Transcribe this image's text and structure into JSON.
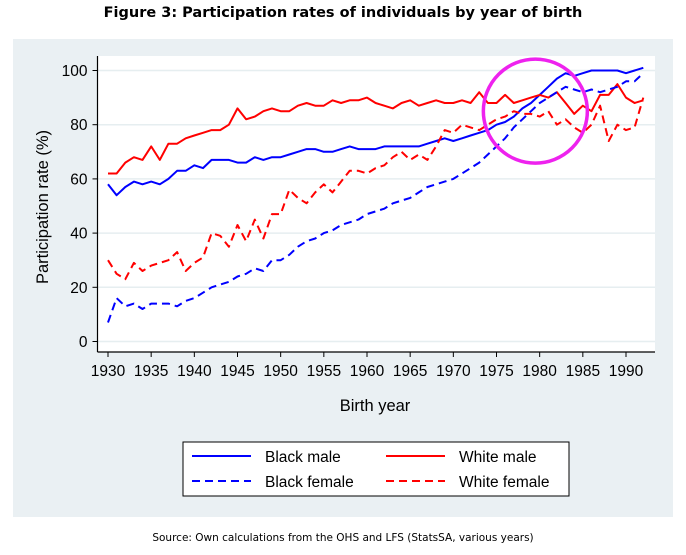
{
  "figure_title": "Figure 3: Participation rates of individuals by year of birth",
  "source_note": "Source: Own calculations from the OHS and LFS (StatsSA,  various years)",
  "colors": {
    "black_series": "#0000ff",
    "white_series": "#ff0000",
    "panel_background": "#eaf0f3",
    "plot_background": "#ffffff",
    "gridline": "#e6eef0",
    "highlight_circle": "#ee22ee"
  },
  "chart_data": {
    "type": "line",
    "title": "Figure 3: Participation rates of individuals by year of birth",
    "xlabel": "Birth year",
    "ylabel": "Participation rate (%)",
    "xlim": [
      1928.8,
      1993.5
    ],
    "ylim": [
      -4,
      105
    ],
    "xticks": [
      1930,
      1935,
      1940,
      1945,
      1950,
      1955,
      1960,
      1965,
      1970,
      1975,
      1980,
      1985,
      1990
    ],
    "xtick_labels": [
      "1930",
      "1935",
      "1940",
      "1945",
      "1950",
      "1955",
      "1960",
      "1965",
      "1970",
      "1975",
      "1980",
      "1985",
      "1990"
    ],
    "yticks": [
      0,
      20,
      40,
      60,
      80,
      100
    ],
    "ytick_labels": [
      "0",
      "20",
      "40",
      "60",
      "80",
      "100"
    ],
    "grid": true,
    "legend_position": "bottom",
    "x": [
      1930,
      1931,
      1932,
      1933,
      1934,
      1935,
      1936,
      1937,
      1938,
      1939,
      1940,
      1941,
      1942,
      1943,
      1944,
      1945,
      1946,
      1947,
      1948,
      1949,
      1950,
      1951,
      1952,
      1953,
      1954,
      1955,
      1956,
      1957,
      1958,
      1959,
      1960,
      1961,
      1962,
      1963,
      1964,
      1965,
      1966,
      1967,
      1968,
      1969,
      1970,
      1971,
      1972,
      1973,
      1974,
      1975,
      1976,
      1977,
      1978,
      1979,
      1980,
      1981,
      1982,
      1983,
      1984,
      1985,
      1986,
      1987,
      1988,
      1989,
      1990,
      1991,
      1992
    ],
    "series": [
      {
        "name": "Black male",
        "color": "#0000ff",
        "dash": "solid",
        "values": [
          58,
          54,
          57,
          59,
          58,
          59,
          58,
          60,
          63,
          63,
          65,
          64,
          67,
          67,
          67,
          66,
          66,
          68,
          67,
          68,
          68,
          69,
          70,
          71,
          71,
          70,
          70,
          71,
          72,
          71,
          71,
          71,
          72,
          72,
          72,
          72,
          72,
          73,
          74,
          75,
          74,
          75,
          76,
          77,
          78,
          80,
          81,
          83,
          86,
          88,
          91,
          94,
          97,
          99,
          98,
          99,
          100,
          100,
          100,
          100,
          99,
          100,
          101
        ]
      },
      {
        "name": "White male",
        "color": "#ff0000",
        "dash": "solid",
        "values": [
          62,
          62,
          66,
          68,
          67,
          72,
          67,
          73,
          73,
          75,
          76,
          77,
          78,
          78,
          80,
          86,
          82,
          83,
          85,
          86,
          85,
          85,
          87,
          88,
          87,
          87,
          89,
          88,
          89,
          89,
          90,
          88,
          87,
          86,
          88,
          89,
          87,
          88,
          89,
          88,
          88,
          89,
          88,
          92,
          88,
          88,
          91,
          88,
          89,
          90,
          91,
          90,
          92,
          88,
          84,
          87,
          85,
          91,
          91,
          95,
          90,
          88,
          89
        ]
      },
      {
        "name": "Black female",
        "color": "#0000ff",
        "dash": "dashed",
        "values": [
          7,
          16,
          13,
          14,
          12,
          14,
          14,
          14,
          13,
          15,
          16,
          18,
          20,
          21,
          22,
          24,
          25,
          27,
          26,
          30,
          30,
          32,
          35,
          37,
          38,
          40,
          41,
          43,
          44,
          45,
          47,
          48,
          49,
          51,
          52,
          53,
          55,
          57,
          58,
          59,
          60,
          62,
          64,
          66,
          69,
          72,
          75,
          79,
          82,
          85,
          88,
          90,
          92,
          94,
          93,
          92,
          93,
          92,
          93,
          94,
          96,
          96,
          99
        ]
      },
      {
        "name": "White female",
        "color": "#ff0000",
        "dash": "dashed",
        "values": [
          30,
          25,
          23,
          29,
          26,
          28,
          29,
          30,
          33,
          26,
          29,
          31,
          40,
          39,
          35,
          43,
          37,
          45,
          38,
          47,
          47,
          56,
          53,
          51,
          55,
          58,
          55,
          59,
          63,
          63,
          62,
          64,
          65,
          68,
          70,
          67,
          69,
          67,
          72,
          78,
          77,
          80,
          79,
          78,
          80,
          82,
          83,
          85,
          84,
          84,
          83,
          85,
          80,
          82,
          79,
          77,
          80,
          87,
          74,
          80,
          78,
          79,
          90
        ]
      }
    ],
    "annotations": [
      {
        "type": "circle",
        "center_x": 1979.5,
        "center_y": 85,
        "note": "highlight around crossing of series"
      }
    ]
  },
  "legend": {
    "items": [
      {
        "label": "Black male",
        "color": "#0000ff",
        "dash": "solid"
      },
      {
        "label": "White male",
        "color": "#ff0000",
        "dash": "solid"
      },
      {
        "label": "Black female",
        "color": "#0000ff",
        "dash": "dashed"
      },
      {
        "label": "White female",
        "color": "#ff0000",
        "dash": "dashed"
      }
    ]
  }
}
